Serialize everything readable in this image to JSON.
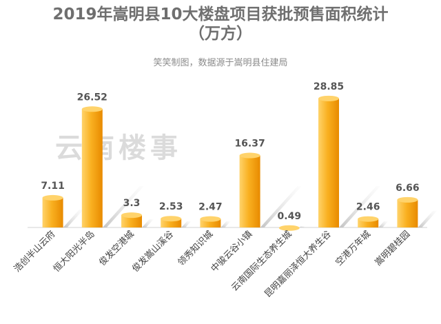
{
  "header": {
    "title": "2019年嵩明县10大楼盘项目获批预售面积统计",
    "subtitle": "（万方）",
    "source": "笑笑制图，数据源于嵩明县住建局",
    "watermark": "云南楼事"
  },
  "chart_data": {
    "type": "bar",
    "title": "2019年嵩明县10大楼盘项目获批预售面积统计（万方）",
    "categories": [
      "浩创半山云府",
      "恒大阳光半岛",
      "俊发空港城",
      "俊发嵩山溪谷",
      "领秀知识城",
      "中骏云谷小镇",
      "云南国际生态养生城",
      "昆明嘉丽泽恒大养生谷",
      "空港万年城",
      "嵩明碧桂园"
    ],
    "values": [
      7.11,
      26.52,
      3.3,
      2.53,
      2.47,
      16.37,
      0.49,
      28.85,
      2.46,
      6.66
    ],
    "labels": [
      "7.11",
      "26.52",
      "3.3",
      "2.53",
      "2.47",
      "16.37",
      "0.49",
      "28.85",
      "2.46",
      "6.66"
    ],
    "ylim": [
      0,
      32
    ],
    "grid": false,
    "legend": "none",
    "colors": {
      "bar_light": "#ffd36b",
      "bar_mid": "#f9b020",
      "bar_dark": "#e88a00",
      "shadow": "#d9d9d9"
    }
  }
}
